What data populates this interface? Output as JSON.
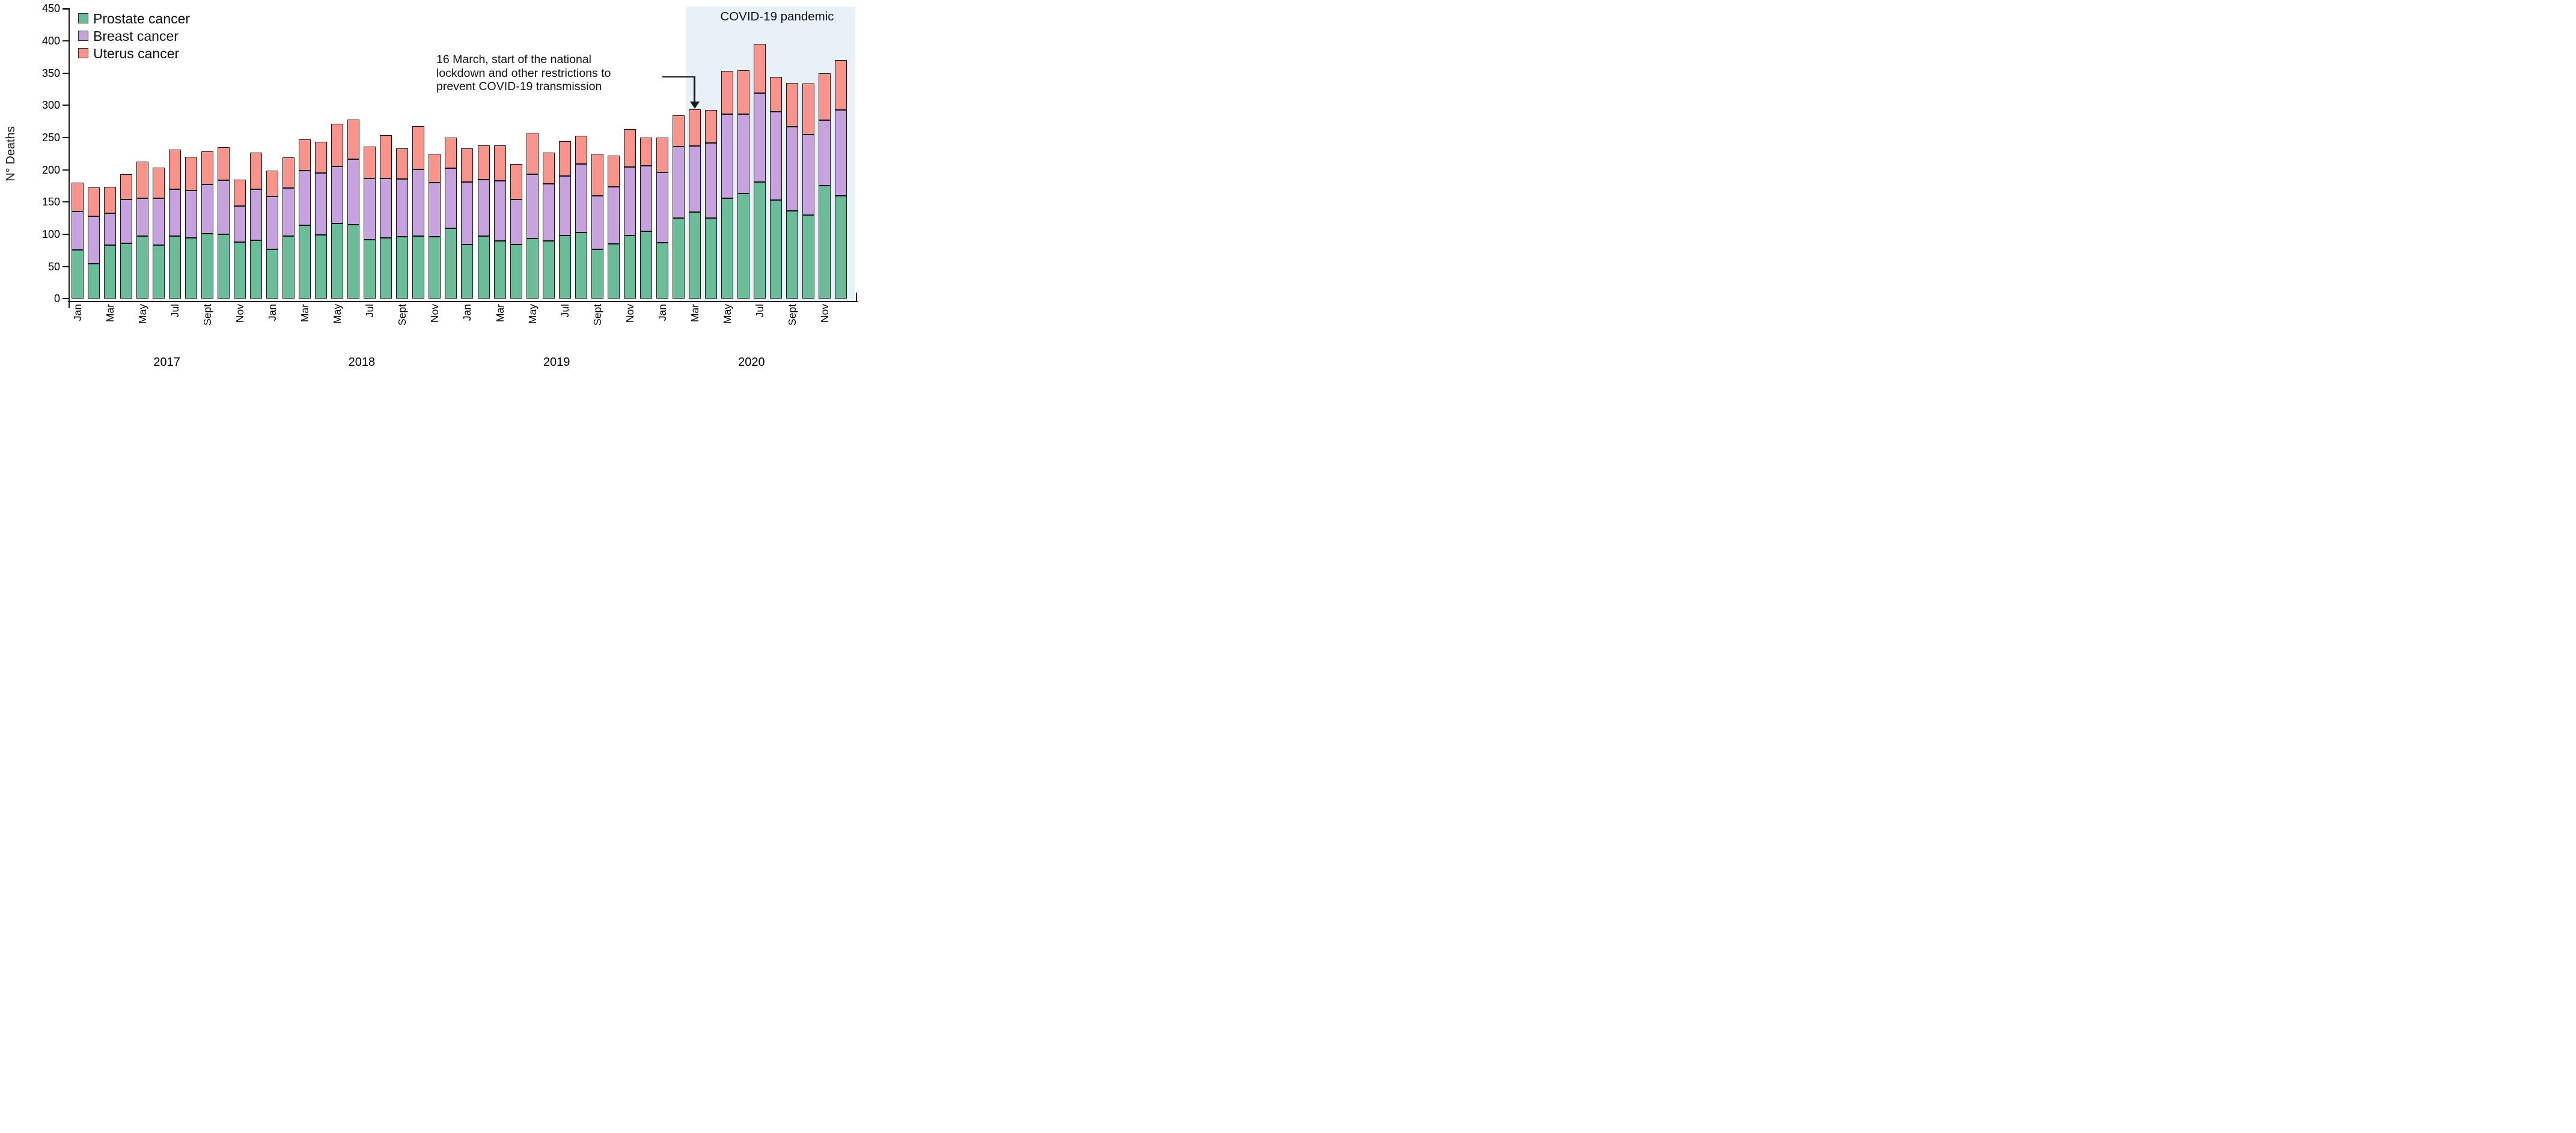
{
  "figure": {
    "y_axis_title": "N° Deaths",
    "covid_label": "COVID-19 pandemic",
    "annotation": {
      "lines": [
        "16 March, start of the national",
        "lockdown and other restrictions to",
        "prevent COVID-19 transmission"
      ],
      "points_to": "Mar 2020"
    },
    "legend": [
      {
        "label": "Prostate cancer",
        "color": "#6ABD98"
      },
      {
        "label": "Breast cancer",
        "color": "#C6A3DF"
      },
      {
        "label": "Uterus cancer",
        "color": "#F8948C"
      }
    ],
    "colors": {
      "covid_region": "#E9F1F8",
      "outline": "#141414"
    }
  },
  "chart_data": {
    "type": "bar",
    "stacked": true,
    "ylabel": "N° Deaths",
    "ylim": [
      0,
      450
    ],
    "ytick_step": 50,
    "grid": false,
    "legend_position": "top-left",
    "years": [
      "2017",
      "2018",
      "2019",
      "2020"
    ],
    "months_per_year": [
      "Jan",
      "Feb",
      "Mar",
      "Apr",
      "May",
      "Jun",
      "Jul",
      "Aug",
      "Sep",
      "Oct",
      "Nov",
      "Dec"
    ],
    "x_tick_labels_shown": [
      "Jan",
      "Mar",
      "May",
      "Jul",
      "Sept",
      "Nov"
    ],
    "series": [
      {
        "name": "Prostate cancer",
        "color": "#6ABD98",
        "values": [
          76,
          54,
          83,
          86,
          97,
          83,
          97,
          94,
          101,
          100,
          88,
          91,
          77,
          97,
          114,
          99,
          117,
          115,
          92,
          94,
          96,
          97,
          96,
          109,
          84,
          97,
          90,
          84,
          93,
          90,
          98,
          103,
          77,
          85,
          98,
          105,
          87,
          125,
          134,
          125,
          156,
          163,
          181,
          153,
          136,
          130,
          175,
          160
        ]
      },
      {
        "name": "Breast cancer",
        "color": "#C6A3DF",
        "values": [
          59,
          74,
          50,
          68,
          59,
          73,
          73,
          74,
          76,
          84,
          56,
          79,
          82,
          75,
          85,
          96,
          88,
          101,
          95,
          93,
          90,
          104,
          84,
          93,
          97,
          88,
          93,
          70,
          100,
          88,
          92,
          106,
          83,
          89,
          106,
          101,
          109,
          111,
          103,
          117,
          130,
          123,
          138,
          137,
          131,
          125,
          102,
          133
        ]
      },
      {
        "name": "Uterus cancer",
        "color": "#F8948C",
        "values": [
          45,
          45,
          41,
          39,
          57,
          47,
          61,
          52,
          52,
          51,
          41,
          57,
          40,
          47,
          48,
          48,
          66,
          62,
          49,
          67,
          47,
          67,
          45,
          48,
          52,
          53,
          55,
          55,
          64,
          49,
          54,
          44,
          65,
          48,
          59,
          44,
          54,
          48,
          57,
          51,
          67,
          68,
          76,
          54,
          68,
          79,
          73,
          77
        ]
      }
    ],
    "covid_region": {
      "label": "COVID-19 pandemic",
      "start": "Mar 2020",
      "end": "Dec 2020"
    }
  }
}
